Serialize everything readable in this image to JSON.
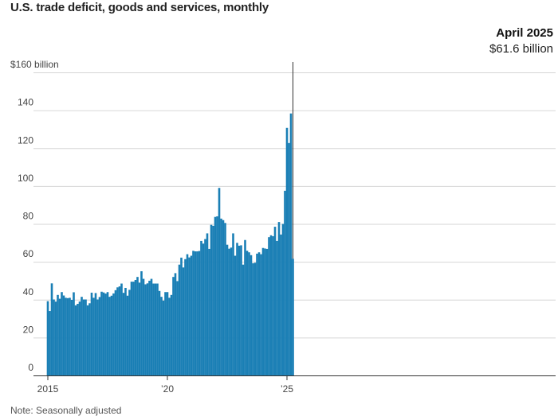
{
  "title": "U.S. trade deficit, goods and services, monthly",
  "callout": {
    "date": "April 2025",
    "value": "$61.6 billion"
  },
  "note": "Note: Seasonally adjusted",
  "colors": {
    "bar": "#1a7fb5",
    "grid": "#d6d6d6",
    "axis": "#333333",
    "callout_line": "#333333"
  },
  "chart_data": {
    "type": "bar",
    "title": "U.S. trade deficit, goods and services, monthly",
    "ylim": [
      0,
      160
    ],
    "yticks": [
      0,
      20,
      40,
      60,
      80,
      100,
      120,
      140,
      160
    ],
    "ytick_labels": [
      "0",
      "20",
      "40",
      "60",
      "80",
      "100",
      "120",
      "140",
      "$160 billion"
    ],
    "xtick_labels": [
      {
        "label": "2015",
        "month_index": 0
      },
      {
        "label": "’20",
        "month_index": 60
      },
      {
        "label": "’25",
        "month_index": 120
      }
    ],
    "grid": true,
    "start": "2015-01",
    "end": "2025-04",
    "values": [
      39.2,
      34.0,
      48.6,
      40.1,
      39.0,
      42.5,
      40.5,
      44.0,
      42.2,
      41.0,
      40.8,
      41.0,
      39.9,
      43.9,
      37.0,
      37.8,
      39.0,
      41.5,
      40.1,
      40.1,
      37.0,
      38.1,
      43.7,
      41.0,
      43.5,
      40.1,
      41.4,
      44.2,
      43.8,
      43.2,
      44.0,
      41.5,
      42.1,
      43.3,
      45.0,
      46.5,
      47.0,
      48.5,
      43.6,
      46.2,
      42.1,
      45.2,
      49.5,
      49.5,
      50.4,
      52.0,
      49.0,
      55.0,
      51.0,
      48.1,
      48.6,
      50.0,
      51.0,
      48.5,
      48.5,
      48.5,
      44.6,
      41.5,
      39.5,
      44.0,
      44.0,
      41.0,
      42.5,
      52.0,
      54.0,
      49.8,
      58.5,
      62.2,
      57.0,
      61.4,
      64.0,
      62.3,
      63.2,
      65.8,
      65.5,
      65.5,
      65.7,
      71.0,
      69.6,
      72.0,
      75.0,
      66.8,
      79.5,
      79.0,
      83.7,
      84.0,
      99.0,
      82.8,
      82.0,
      80.5,
      69.0,
      66.9,
      67.5,
      75.0,
      63.2,
      70.0,
      68.5,
      68.7,
      58.5,
      71.5,
      65.8,
      65.0,
      63.5,
      59.2,
      59.5,
      64.3,
      65.0,
      64.0,
      67.3,
      67.0,
      66.8,
      73.0,
      74.0,
      73.5,
      78.5,
      71.0,
      81.0,
      74.4,
      80.0,
      97.5,
      130.7,
      122.7,
      138.3,
      61.6
    ]
  }
}
